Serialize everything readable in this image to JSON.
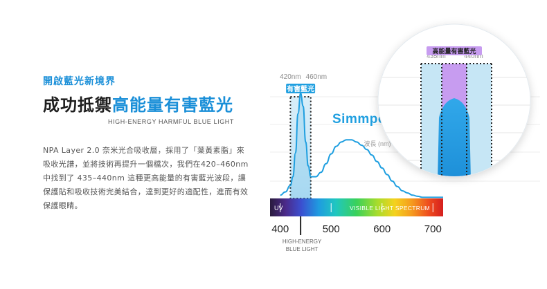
{
  "left": {
    "kicker": "開啟藍光新境界",
    "headline_dark": "成功抵禦",
    "headline_blue": "高能量有害藍光",
    "subhead": "HIGH-ENERGY HARMFUL BLUE LIGHT",
    "body": "NPA Layer 2.0 奈米光合吸收層，採用了「葉黃素脂」來吸收光譜，並將技術再提升一個檔次，我們在420–460nm 中找到了 435–440nm 這種更高能量的有害藍光波段，讓保護貼和吸收技術完美結合，達到更好的適配性，進而有效保護眼睛。"
  },
  "chart_data": {
    "type": "line",
    "x_label": "波長 (nm)",
    "x_ticks": [
      400,
      500,
      600,
      700
    ],
    "xlim": [
      380,
      720
    ],
    "band_main": {
      "from": 420,
      "to": 460,
      "from_label": "420nm",
      "to_label": "460nm",
      "label": "有害藍光"
    },
    "band_zoom": {
      "from": 435,
      "to": 440,
      "from_label": "435nm",
      "to_label": "440nm",
      "label": "高能量有害藍光"
    },
    "curve_x": [
      400,
      410,
      420,
      425,
      430,
      435,
      440,
      445,
      450,
      455,
      460,
      470,
      480,
      490,
      500,
      510,
      520,
      530,
      540,
      550,
      560,
      570,
      580,
      590,
      600,
      610,
      620,
      630,
      640,
      650,
      660,
      670,
      680,
      690,
      700,
      710,
      720
    ],
    "curve_y": [
      0.03,
      0.06,
      0.12,
      0.2,
      0.42,
      0.78,
      0.97,
      0.85,
      0.52,
      0.3,
      0.2,
      0.2,
      0.24,
      0.32,
      0.41,
      0.48,
      0.52,
      0.54,
      0.54,
      0.52,
      0.49,
      0.45,
      0.4,
      0.34,
      0.28,
      0.22,
      0.16,
      0.11,
      0.07,
      0.05,
      0.03,
      0.02,
      0.01,
      0.01,
      0.01,
      0.01,
      0.01
    ],
    "spectrum_left": "UV",
    "spectrum_right": "VISIBLE LIGHT SPECTRUM",
    "marker": 440,
    "marker_label_1": "HIGH-ENERGY",
    "marker_label_2": "BLUE LIGHT",
    "grid": true
  },
  "brand": {
    "logo_text": "Simmpo"
  },
  "colors": {
    "accent": "#1a8fd8",
    "band_fill": "#cfe9f6",
    "curve": "#1f9fe0",
    "purple": "#c79cf0",
    "dotted": "#222222"
  }
}
